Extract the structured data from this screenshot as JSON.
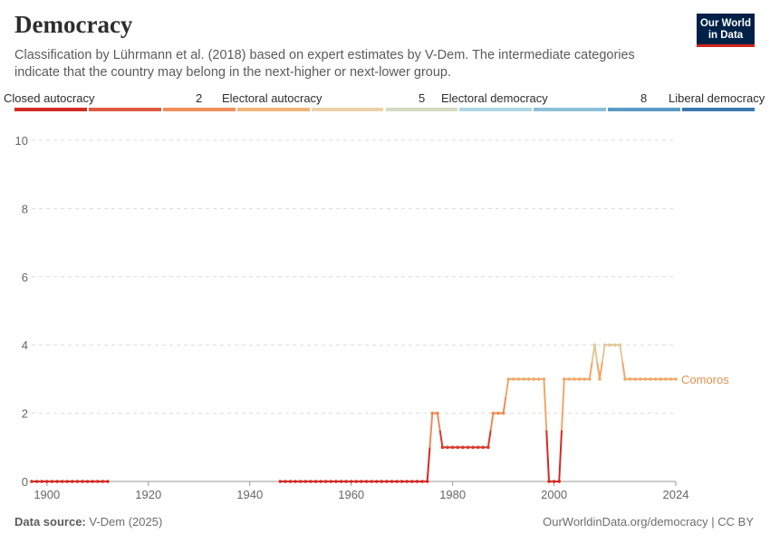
{
  "header": {
    "title": "Democracy",
    "subtitle": "Classification by Lührmann et al. (2018) based on expert estimates by V-Dem. The intermediate categories indicate that the country may belong in the next-higher or next-lower group.",
    "logo_line1": "Our World",
    "logo_line2": "in Data"
  },
  "legend": {
    "labels": [
      "Closed autocracy",
      "2",
      "Electoral autocracy",
      "5",
      "Electoral democracy",
      "8",
      "Liberal democracy"
    ],
    "colors": [
      "#d42a22",
      "#e05a3f",
      "#ee8f5c",
      "#f2b376",
      "#ecd1a8",
      "#d2dcc0",
      "#acd7e0",
      "#8cc0d8",
      "#5a9ac8",
      "#3a78ad"
    ]
  },
  "footer": {
    "source_label": "Data source:",
    "source_value": "V-Dem (2025)",
    "url": "OurWorldinData.org/democracy | CC BY"
  },
  "chart_data": {
    "type": "line",
    "xlim": [
      1897,
      2024
    ],
    "ylim": [
      0,
      10
    ],
    "x_ticks": [
      1900,
      1920,
      1940,
      1960,
      1980,
      2000,
      2024
    ],
    "y_ticks": [
      0,
      2,
      4,
      6,
      8,
      10
    ],
    "grid": true,
    "series": [
      {
        "name": "Comoros",
        "color": "#e1914f",
        "segments": [
          {
            "x": [
              1897,
              1898,
              1899,
              1900,
              1901,
              1902,
              1903,
              1904,
              1905,
              1906,
              1907,
              1908,
              1909,
              1910,
              1911,
              1912
            ],
            "y": [
              0,
              0,
              0,
              0,
              0,
              0,
              0,
              0,
              0,
              0,
              0,
              0,
              0,
              0,
              0,
              0
            ]
          },
          {
            "x": [
              1946,
              1947,
              1948,
              1949,
              1950,
              1951,
              1952,
              1953,
              1954,
              1955,
              1956,
              1957,
              1958,
              1959,
              1960,
              1961,
              1962,
              1963,
              1964,
              1965,
              1966,
              1967,
              1968,
              1969,
              1970,
              1971,
              1972,
              1973,
              1974,
              1975,
              1976,
              1977,
              1978,
              1979,
              1980,
              1981,
              1982,
              1983,
              1984,
              1985,
              1986,
              1987,
              1988,
              1989,
              1990,
              1991,
              1992,
              1993,
              1994,
              1995,
              1996,
              1997,
              1998,
              1999,
              2000,
              2001,
              2002,
              2003,
              2004,
              2005,
              2006,
              2007,
              2008,
              2009,
              2010,
              2011,
              2012,
              2013,
              2014,
              2015,
              2016,
              2017,
              2018,
              2019,
              2020,
              2021,
              2022,
              2023,
              2024
            ],
            "y": [
              0,
              0,
              0,
              0,
              0,
              0,
              0,
              0,
              0,
              0,
              0,
              0,
              0,
              0,
              0,
              0,
              0,
              0,
              0,
              0,
              0,
              0,
              0,
              0,
              0,
              0,
              0,
              0,
              0,
              0,
              2,
              2,
              1,
              1,
              1,
              1,
              1,
              1,
              1,
              1,
              1,
              1,
              2,
              2,
              2,
              3,
              3,
              3,
              3,
              3,
              3,
              3,
              3,
              0,
              0,
              0,
              3,
              3,
              3,
              3,
              3,
              3,
              4,
              3,
              4,
              4,
              4,
              4,
              3,
              3,
              3,
              3,
              3,
              3,
              3,
              3,
              3,
              3,
              3
            ]
          }
        ]
      }
    ]
  }
}
